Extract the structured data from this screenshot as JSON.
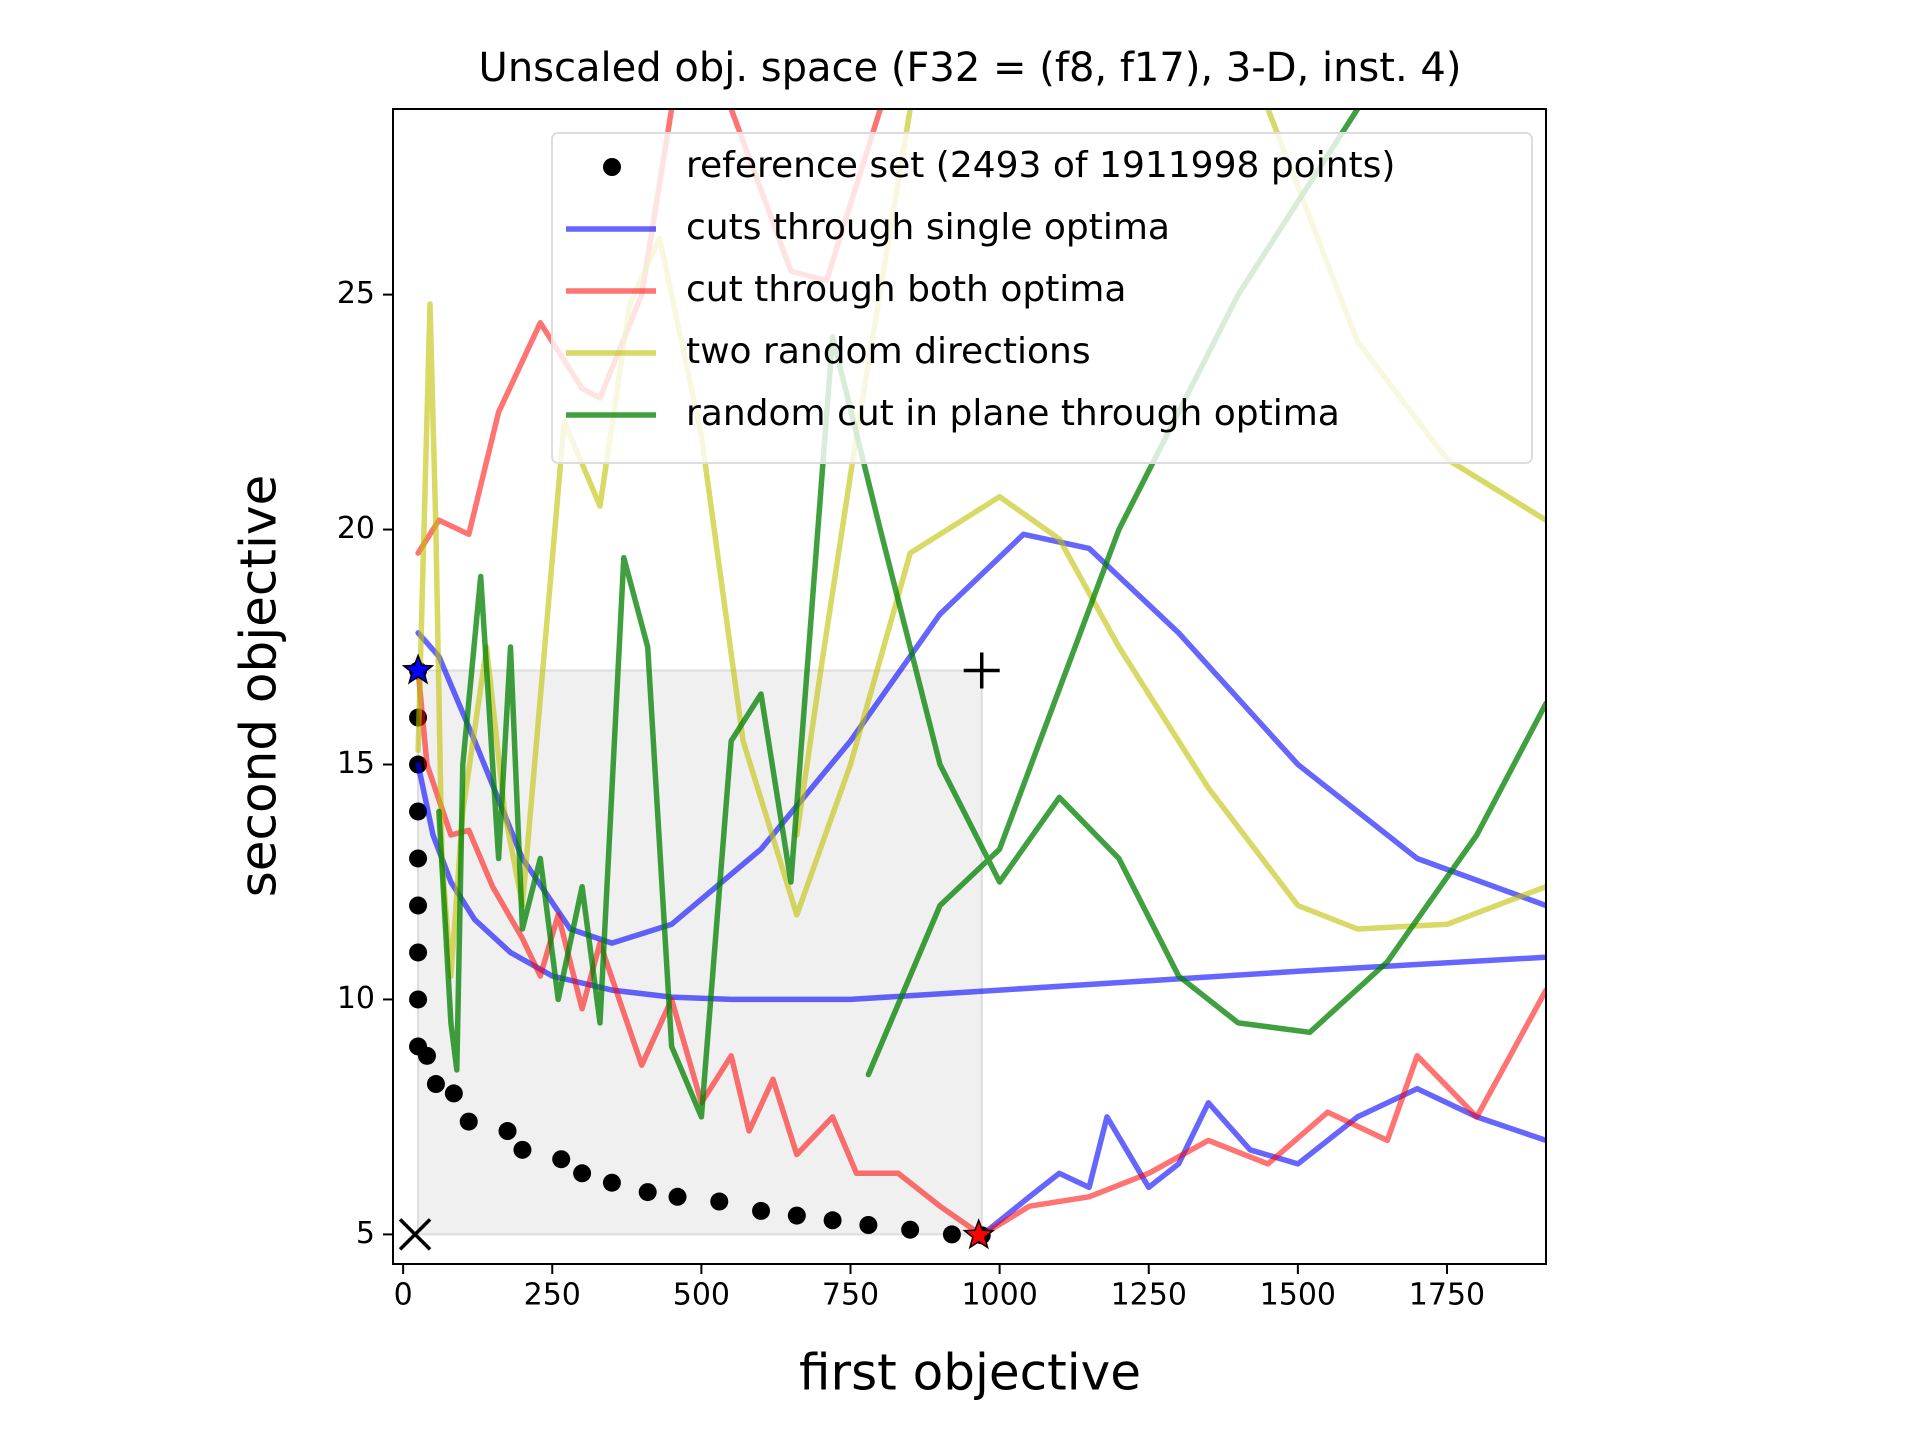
{
  "chart_data": {
    "type": "line",
    "title": "Unscaled obj. space (F32 = (f8, f17), 3-D, inst. 4)",
    "x_label": "first objective",
    "y_label": "second objective",
    "xlim": [
      -17,
      1916
    ],
    "ylim": [
      4.37,
      28.95
    ],
    "xticks": [
      0,
      250,
      500,
      750,
      1000,
      1250,
      1500,
      1750
    ],
    "yticks": [
      5,
      10,
      15,
      20,
      25
    ],
    "legend": "upper right",
    "region": {
      "x": [
        25,
        970
      ],
      "y": [
        5,
        17
      ],
      "color": "#f0f0f0"
    },
    "series": [
      {
        "name": "reference set (2493 of 1911998 points)",
        "style": "dots",
        "color": "#000000",
        "alpha": 1,
        "x": [
          25,
          25,
          25,
          25,
          25,
          25,
          25,
          25,
          25,
          40,
          55,
          85,
          110,
          175,
          200,
          265,
          300,
          350,
          410,
          460,
          530,
          600,
          660,
          720,
          780,
          850,
          920,
          970
        ],
        "values": [
          17,
          16,
          15,
          14,
          13,
          12,
          11,
          10,
          9,
          8.8,
          8.2,
          8,
          7.4,
          7.2,
          6.8,
          6.6,
          6.3,
          6.1,
          5.9,
          5.8,
          5.7,
          5.5,
          5.4,
          5.3,
          5.2,
          5.1,
          5.0,
          4.98
        ]
      },
      {
        "name": "cuts through single optima",
        "style": "line",
        "color": "#0000ff",
        "alpha": 0.6,
        "x": [
          25,
          50,
          80,
          120,
          180,
          250,
          350,
          450,
          550,
          750,
          1000,
          1250,
          1500,
          1916,
          null,
          25,
          60,
          120,
          200,
          280,
          350,
          450,
          600,
          750,
          900,
          1040,
          1150,
          1300,
          1500,
          1700,
          1916,
          null,
          970,
          1050,
          1100,
          1150,
          1180,
          1250,
          1300,
          1350,
          1420,
          1500,
          1600,
          1700,
          1800,
          1916
        ],
        "values": [
          15,
          13.5,
          12.5,
          11.7,
          11,
          10.5,
          10.2,
          10.05,
          10,
          10,
          10.2,
          10.4,
          10.6,
          10.9,
          null,
          17.8,
          17.3,
          15.5,
          13,
          11.5,
          11.2,
          11.6,
          13.2,
          15.5,
          18.2,
          19.9,
          19.6,
          17.8,
          15,
          13,
          12,
          null,
          4.98,
          5.8,
          6.3,
          6,
          7.5,
          6,
          6.5,
          7.8,
          6.8,
          6.5,
          7.5,
          8.1,
          7.5,
          7
        ]
      },
      {
        "name": "cut through both optima",
        "style": "line",
        "color": "#ff0000",
        "alpha": 0.55,
        "x": [
          25,
          40,
          80,
          110,
          150,
          200,
          230,
          260,
          300,
          330,
          400,
          450,
          500,
          550,
          580,
          620,
          660,
          720,
          760,
          830,
          900,
          970,
          1050,
          1150,
          1250,
          1350,
          1450,
          1550,
          1650,
          1700,
          1800,
          1916,
          null,
          25,
          60,
          110,
          160,
          230,
          300,
          330,
          400,
          450,
          null,
          550,
          650,
          710,
          800
        ],
        "values": [
          17,
          15,
          13.5,
          13.6,
          12.4,
          11.3,
          10.5,
          11.8,
          9.8,
          11.2,
          8.6,
          10,
          7.8,
          8.8,
          7.2,
          8.3,
          6.7,
          7.5,
          6.3,
          6.3,
          5.6,
          4.98,
          5.6,
          5.8,
          6.3,
          7,
          6.5,
          7.6,
          7,
          8.8,
          7.5,
          10.2,
          null,
          19.5,
          20.2,
          19.9,
          22.5,
          24.4,
          23,
          22.8,
          25,
          28.95,
          null,
          28.95,
          25.5,
          25.3,
          28.95
        ]
      },
      {
        "name": "two random directions",
        "style": "line",
        "color": "#bfbf00",
        "alpha": 0.6,
        "x": [
          25,
          45,
          55,
          65,
          80,
          100,
          140,
          170,
          200,
          270,
          330,
          380,
          430,
          500,
          570,
          660,
          750,
          850,
          1000,
          1100,
          1200,
          1350,
          1500,
          1600,
          1750,
          1916,
          null,
          660,
          700,
          760,
          850,
          null,
          1450,
          1600,
          1750,
          1916
        ],
        "values": [
          15.3,
          24.8,
          20,
          13,
          10.5,
          14,
          17.5,
          14,
          12,
          22.3,
          20.5,
          24.8,
          26.2,
          22,
          15.5,
          11.8,
          15,
          19.5,
          20.7,
          19.8,
          17.5,
          14.5,
          12,
          11.5,
          11.6,
          12.4,
          null,
          13.5,
          17,
          22,
          28.95,
          null,
          28.95,
          24,
          21.5,
          20.2
        ]
      },
      {
        "name": "random cut in plane through optima",
        "style": "line",
        "color": "#008000",
        "alpha": 0.75,
        "x": [
          60,
          80,
          90,
          100,
          130,
          160,
          180,
          200,
          230,
          260,
          300,
          330,
          370,
          410,
          450,
          500,
          550,
          600,
          650,
          720,
          800,
          900,
          1000,
          1100,
          1200,
          1300,
          1400,
          1520,
          1650,
          1800,
          1916,
          null,
          780,
          900,
          1000,
          1200,
          1400,
          1600
        ],
        "values": [
          14,
          9.5,
          8.5,
          15,
          19,
          13,
          17.5,
          11.5,
          13,
          10,
          12.4,
          9.5,
          19.4,
          17.5,
          9,
          7.5,
          15.5,
          16.5,
          12.5,
          24.1,
          20,
          15,
          12.5,
          14.3,
          13,
          10.5,
          9.5,
          9.3,
          10.8,
          13.5,
          16.3,
          null,
          8.4,
          12,
          13.2,
          20,
          25,
          28.95
        ]
      }
    ],
    "markers": [
      {
        "x": 970,
        "y": 17,
        "symbol": "plus",
        "color": "#000000"
      },
      {
        "x": 20,
        "y": 5,
        "symbol": "cross",
        "color": "#000000"
      },
      {
        "x": 25,
        "y": 17,
        "symbol": "star",
        "color": "#0000ff"
      },
      {
        "x": 965,
        "y": 4.98,
        "symbol": "star",
        "color": "#ff0000"
      }
    ]
  }
}
